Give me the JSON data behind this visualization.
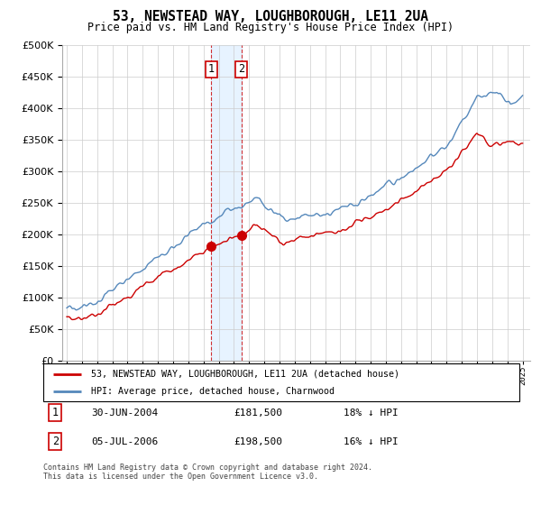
{
  "title": "53, NEWSTEAD WAY, LOUGHBOROUGH, LE11 2UA",
  "subtitle": "Price paid vs. HM Land Registry's House Price Index (HPI)",
  "legend_line1": "53, NEWSTEAD WAY, LOUGHBOROUGH, LE11 2UA (detached house)",
  "legend_line2": "HPI: Average price, detached house, Charnwood",
  "annotation1_date": "30-JUN-2004",
  "annotation1_price": "£181,500",
  "annotation1_hpi": "18% ↓ HPI",
  "annotation2_date": "05-JUL-2006",
  "annotation2_price": "£198,500",
  "annotation2_hpi": "16% ↓ HPI",
  "footer": "Contains HM Land Registry data © Crown copyright and database right 2024.\nThis data is licensed under the Open Government Licence v3.0.",
  "hpi_color": "#5588bb",
  "price_color": "#cc0000",
  "annotation_color": "#cc0000",
  "shading_color": "#ddeeff",
  "ylim_max": 500000,
  "yticks": [
    0,
    50000,
    100000,
    150000,
    200000,
    250000,
    300000,
    350000,
    400000,
    450000,
    500000
  ],
  "year_start": 1995,
  "year_end": 2025,
  "purchase1_year": 2004.5,
  "purchase2_year": 2006.5,
  "purchase1_price": 181500,
  "purchase2_price": 198500
}
